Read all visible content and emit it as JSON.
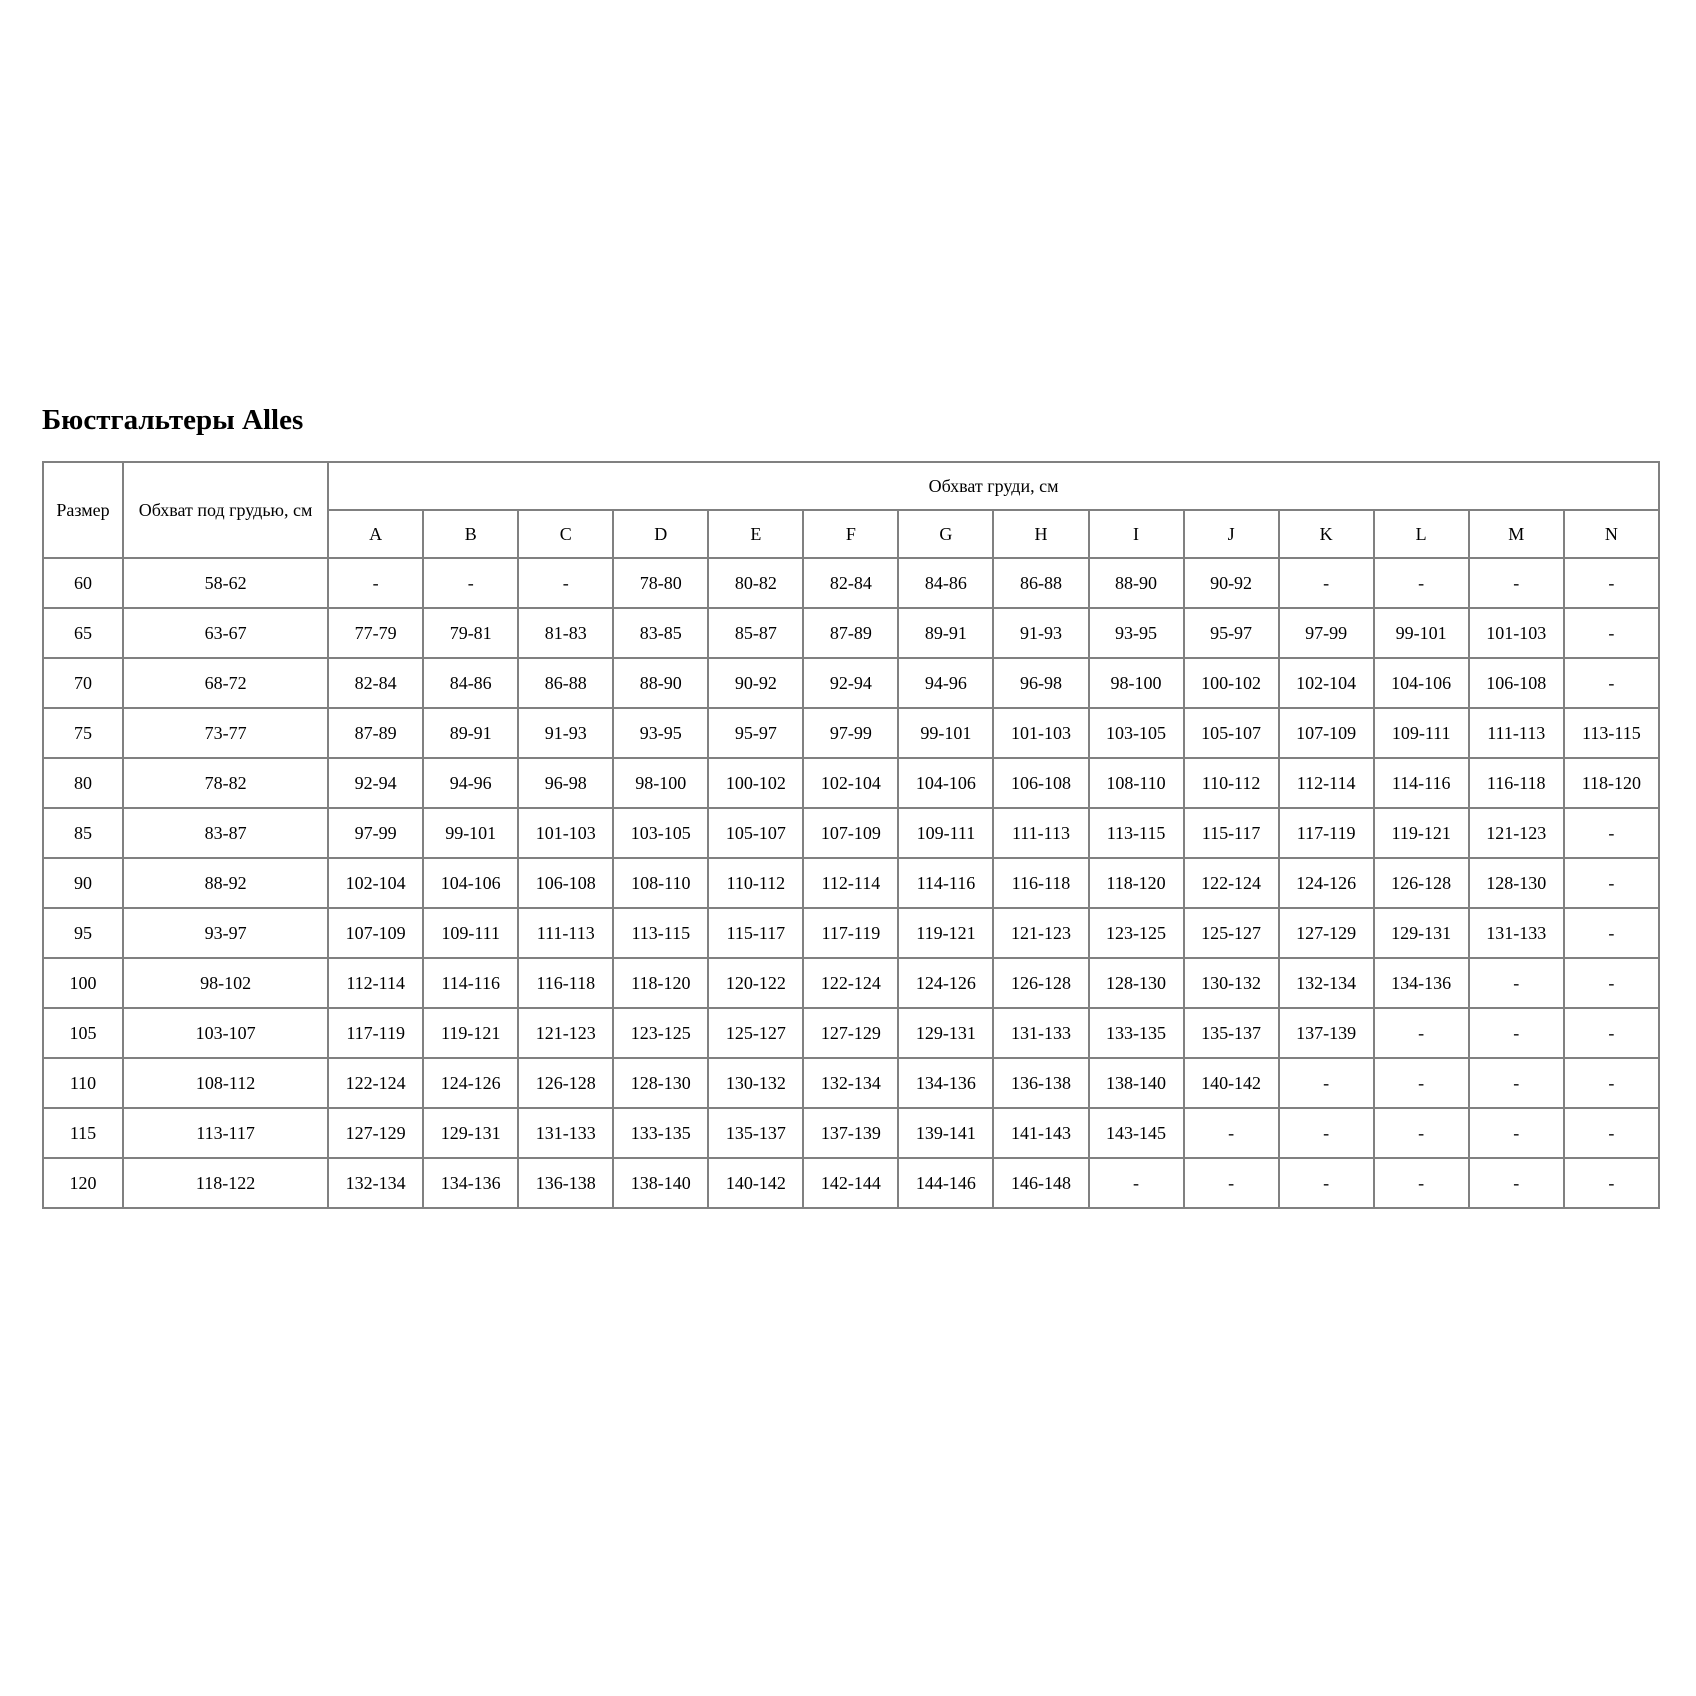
{
  "page": {
    "title": "Бюстгальтеры Alles"
  },
  "table": {
    "size_header": "Размер",
    "underbust_header": "Обхват под грудью, см",
    "bust_span_header": "Обхват груди, см",
    "cup_columns": [
      "A",
      "B",
      "C",
      "D",
      "E",
      "F",
      "G",
      "H",
      "I",
      "J",
      "K",
      "L",
      "M",
      "N"
    ],
    "rows": [
      {
        "size": "60",
        "underbust": "58-62",
        "cups": [
          "-",
          "-",
          "-",
          "78-80",
          "80-82",
          "82-84",
          "84-86",
          "86-88",
          "88-90",
          "90-92",
          "-",
          "-",
          "-",
          "-"
        ]
      },
      {
        "size": "65",
        "underbust": "63-67",
        "cups": [
          "77-79",
          "79-81",
          "81-83",
          "83-85",
          "85-87",
          "87-89",
          "89-91",
          "91-93",
          "93-95",
          "95-97",
          "97-99",
          "99-101",
          "101-103",
          "-"
        ]
      },
      {
        "size": "70",
        "underbust": "68-72",
        "cups": [
          "82-84",
          "84-86",
          "86-88",
          "88-90",
          "90-92",
          "92-94",
          "94-96",
          "96-98",
          "98-100",
          "100-102",
          "102-104",
          "104-106",
          "106-108",
          "-"
        ]
      },
      {
        "size": "75",
        "underbust": "73-77",
        "cups": [
          "87-89",
          "89-91",
          "91-93",
          "93-95",
          "95-97",
          "97-99",
          "99-101",
          "101-103",
          "103-105",
          "105-107",
          "107-109",
          "109-111",
          "111-113",
          "113-115"
        ]
      },
      {
        "size": "80",
        "underbust": "78-82",
        "cups": [
          "92-94",
          "94-96",
          "96-98",
          "98-100",
          "100-102",
          "102-104",
          "104-106",
          "106-108",
          "108-110",
          "110-112",
          "112-114",
          "114-116",
          "116-118",
          "118-120"
        ]
      },
      {
        "size": "85",
        "underbust": "83-87",
        "cups": [
          "97-99",
          "99-101",
          "101-103",
          "103-105",
          "105-107",
          "107-109",
          "109-111",
          "111-113",
          "113-115",
          "115-117",
          "117-119",
          "119-121",
          "121-123",
          "-"
        ]
      },
      {
        "size": "90",
        "underbust": "88-92",
        "cups": [
          "102-104",
          "104-106",
          "106-108",
          "108-110",
          "110-112",
          "112-114",
          "114-116",
          "116-118",
          "118-120",
          "122-124",
          "124-126",
          "126-128",
          "128-130",
          "-"
        ]
      },
      {
        "size": "95",
        "underbust": "93-97",
        "cups": [
          "107-109",
          "109-111",
          "111-113",
          "113-115",
          "115-117",
          "117-119",
          "119-121",
          "121-123",
          "123-125",
          "125-127",
          "127-129",
          "129-131",
          "131-133",
          "-"
        ]
      },
      {
        "size": "100",
        "underbust": "98-102",
        "cups": [
          "112-114",
          "114-116",
          "116-118",
          "118-120",
          "120-122",
          "122-124",
          "124-126",
          "126-128",
          "128-130",
          "130-132",
          "132-134",
          "134-136",
          "-",
          "-"
        ]
      },
      {
        "size": "105",
        "underbust": "103-107",
        "cups": [
          "117-119",
          "119-121",
          "121-123",
          "123-125",
          "125-127",
          "127-129",
          "129-131",
          "131-133",
          "133-135",
          "135-137",
          "137-139",
          "-",
          "-",
          "-"
        ]
      },
      {
        "size": "110",
        "underbust": "108-112",
        "cups": [
          "122-124",
          "124-126",
          "126-128",
          "128-130",
          "130-132",
          "132-134",
          "134-136",
          "136-138",
          "138-140",
          "140-142",
          "-",
          "-",
          "-",
          "-"
        ]
      },
      {
        "size": "115",
        "underbust": "113-117",
        "cups": [
          "127-129",
          "129-131",
          "131-133",
          "133-135",
          "135-137",
          "137-139",
          "139-141",
          "141-143",
          "143-145",
          "-",
          "-",
          "-",
          "-",
          "-"
        ]
      },
      {
        "size": "120",
        "underbust": "118-122",
        "cups": [
          "132-134",
          "134-136",
          "136-138",
          "138-140",
          "140-142",
          "142-144",
          "144-146",
          "146-148",
          "-",
          "-",
          "-",
          "-",
          "-",
          "-"
        ]
      }
    ]
  }
}
